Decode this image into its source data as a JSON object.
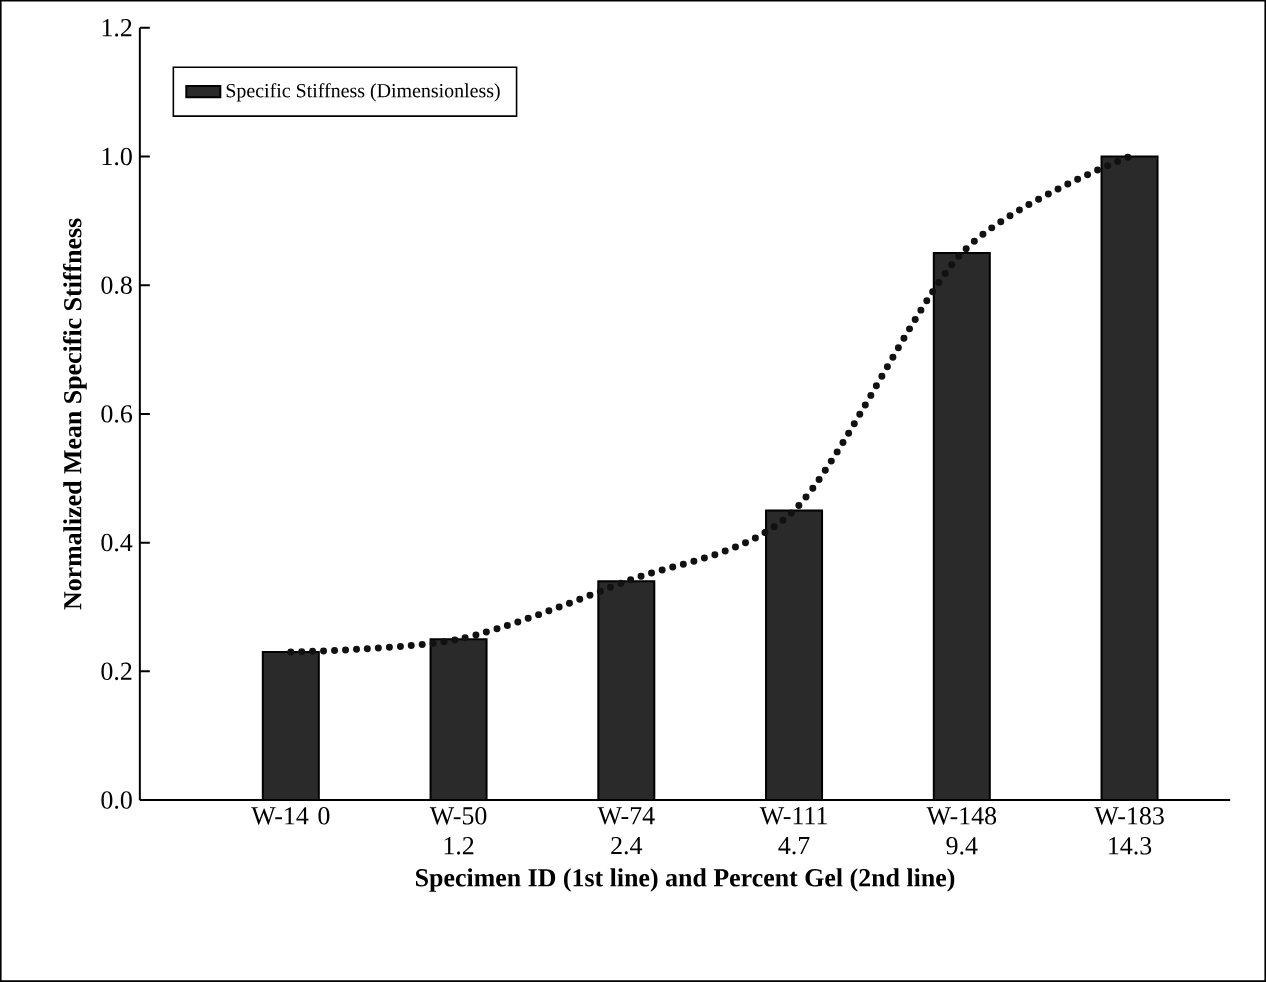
{
  "chart_data": {
    "type": "bar",
    "xlabel": "Specimen ID (1st line) and Percent Gel (2nd line)",
    "ylabel": "Normalized Mean Specific Stiffness",
    "categories": [
      "W-14 0",
      "W-50 1.2",
      "W-74 2.4",
      "W-111 4.7",
      "W-148 9.4",
      "W-183 14.3"
    ],
    "series": [
      {
        "name": "Specific Stiffness (Dimensionless)",
        "type": "bar",
        "color": "#2a2a2a",
        "values": [
          0.23,
          0.25,
          0.34,
          0.45,
          0.85,
          1.0
        ]
      },
      {
        "type": "line",
        "color": "#111111",
        "line_style": "dotted",
        "values": [
          0.23,
          0.25,
          0.34,
          0.45,
          0.85,
          1.0
        ]
      }
    ],
    "ylim": [
      0,
      1.2
    ],
    "yticks": [
      {
        "value": 0,
        "label": "0.0"
      },
      {
        "value": 0.2,
        "label": "0.2"
      },
      {
        "value": 0.4,
        "label": "0.4"
      },
      {
        "value": 0.6,
        "label": "0.6"
      },
      {
        "value": 0.8,
        "label": "0.8"
      },
      {
        "value": 1.0,
        "label": "1.0"
      },
      {
        "value": 1.2,
        "label": "1.2"
      }
    ],
    "legend": "top left",
    "grid": false,
    "marker": "none"
  }
}
